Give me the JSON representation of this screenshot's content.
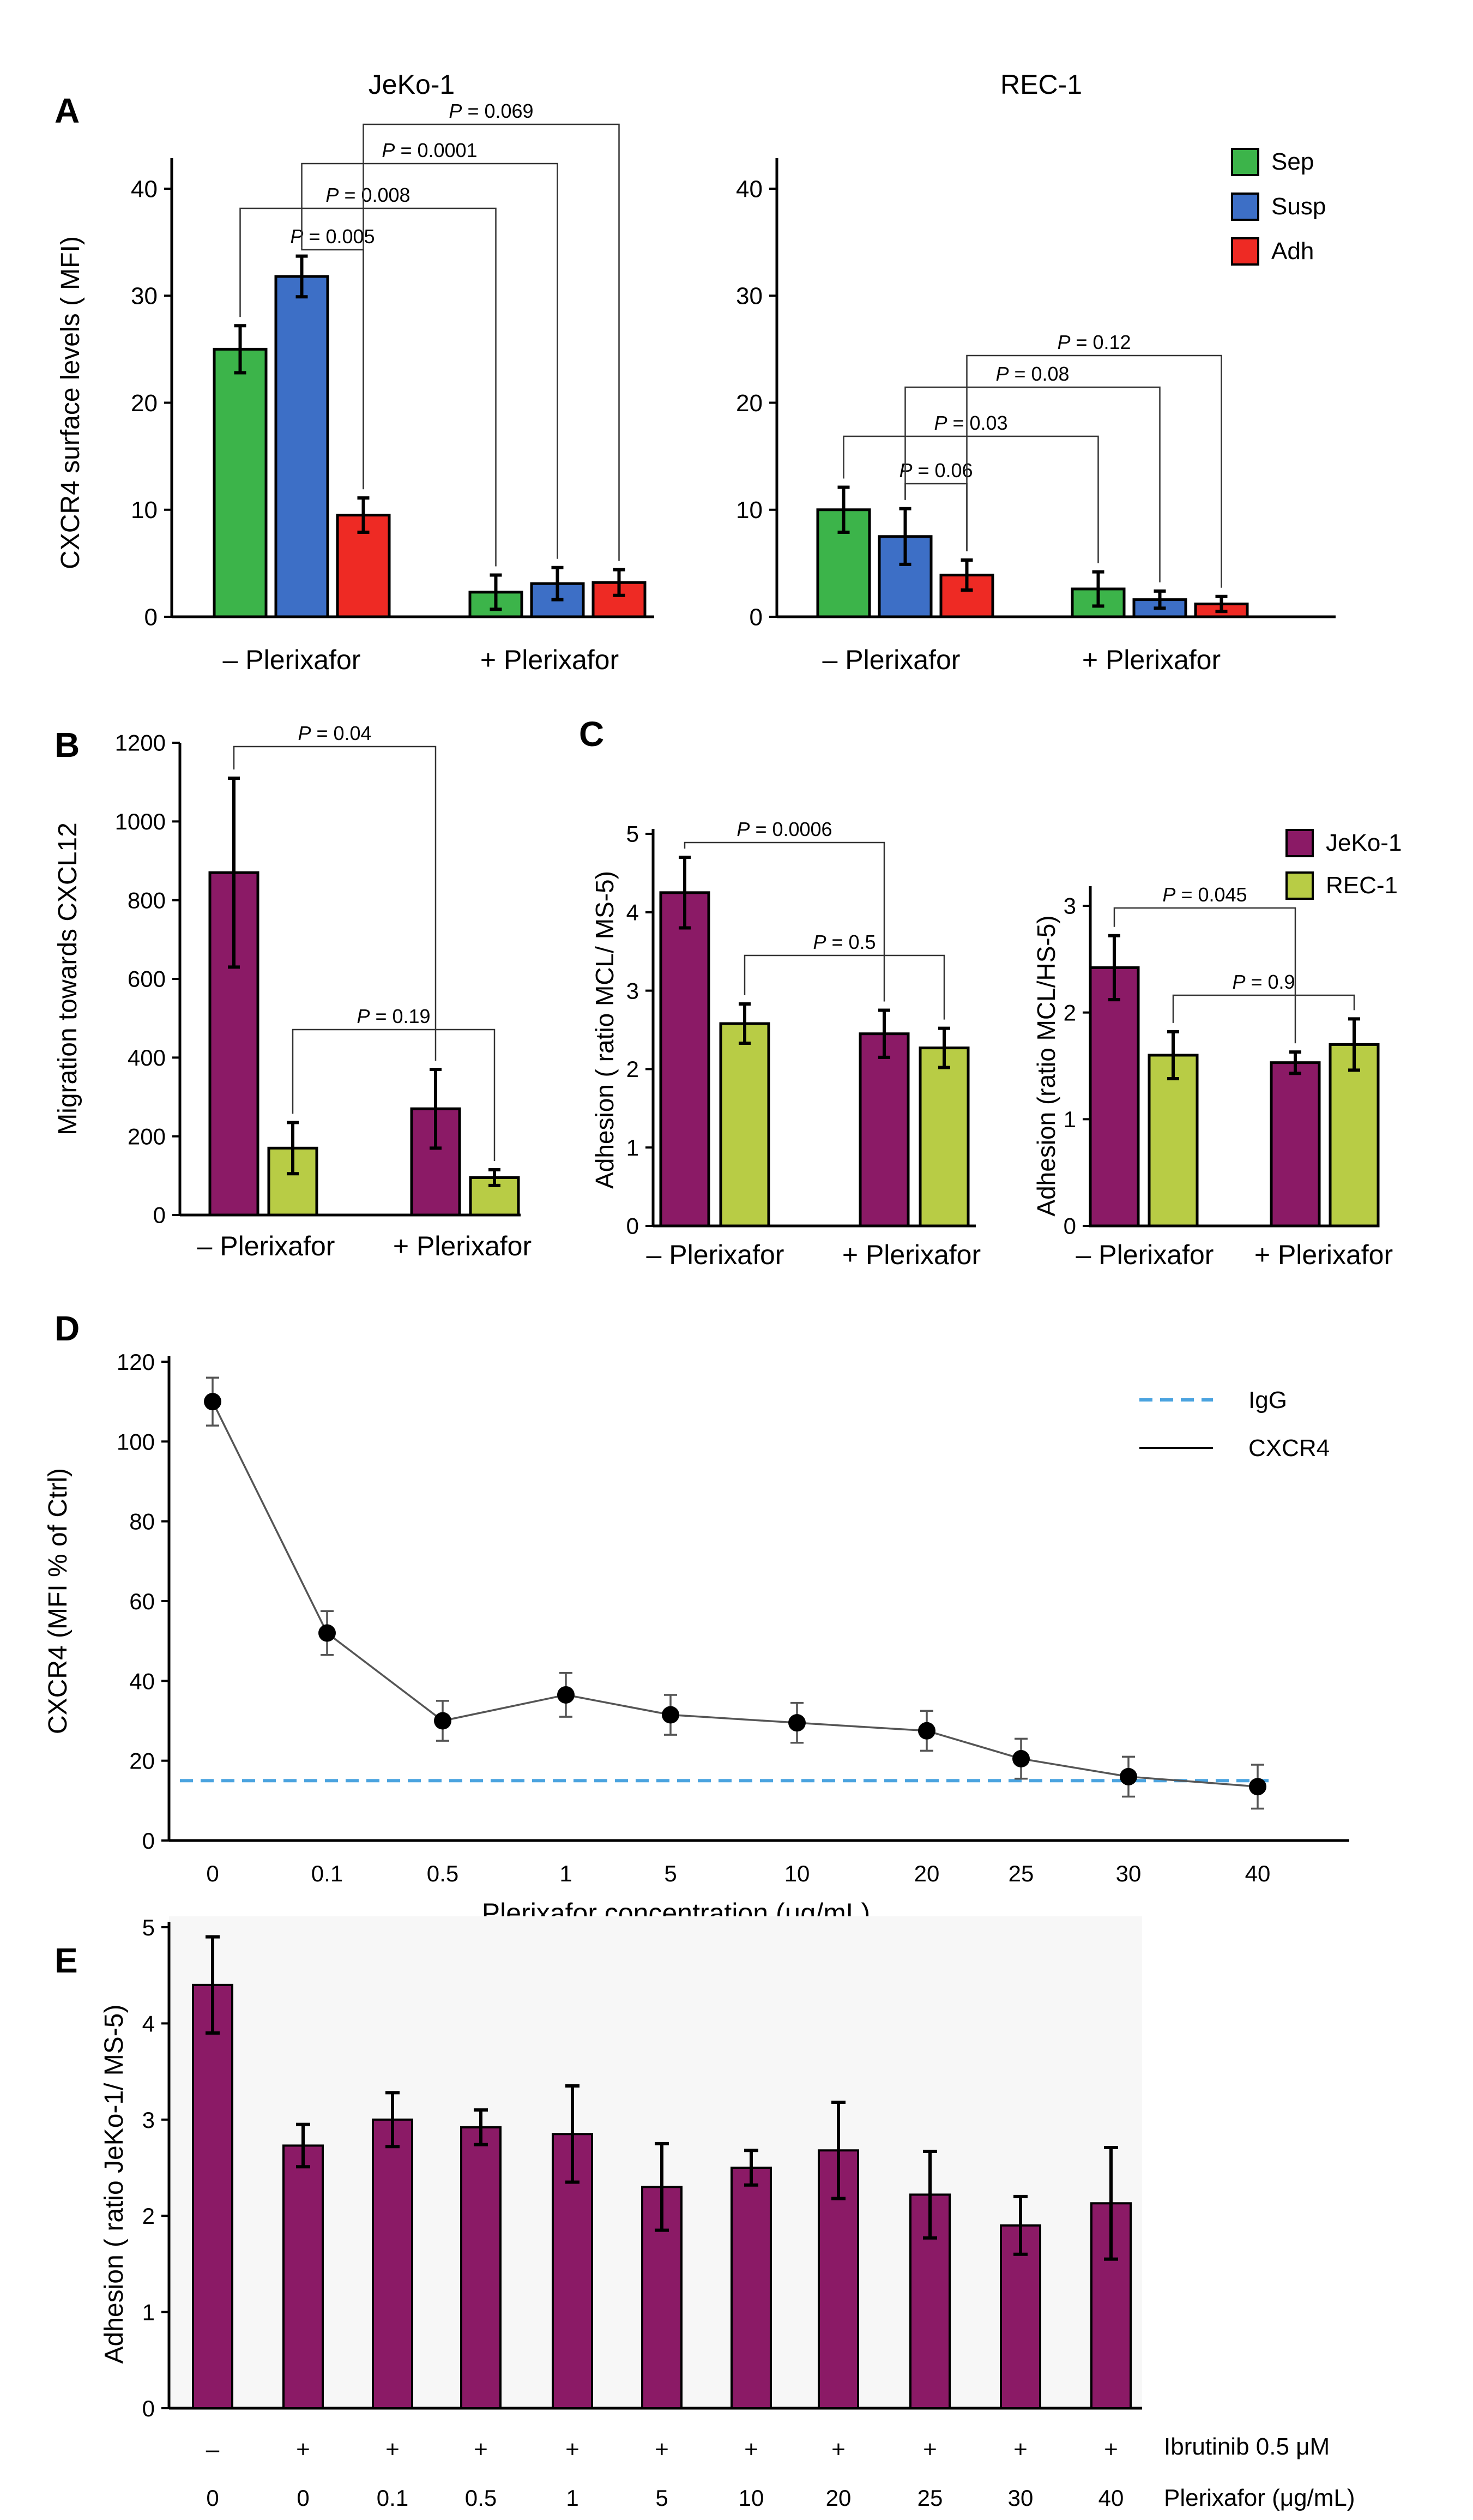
{
  "chart_data": [
    {
      "panel": "A",
      "type": "bar",
      "title": "JeKo-1",
      "ylabel": "CXCR4 surface levels ( MFI)",
      "ylim": [
        0,
        40
      ],
      "yticks": [
        0,
        10,
        20,
        30,
        40
      ],
      "groups": [
        "– Plerixafor",
        "+ Plerixafor"
      ],
      "series": [
        {
          "name": "Sep",
          "color": "#3cb44a",
          "values": [
            25,
            2.3
          ],
          "errors": [
            2.2,
            1.6
          ]
        },
        {
          "name": "Susp",
          "color": "#3d6fc6",
          "values": [
            31.8,
            3.1
          ],
          "errors": [
            1.9,
            1.5
          ]
        },
        {
          "name": "Adh",
          "color": "#ee2a24",
          "values": [
            9.5,
            3.2
          ],
          "errors": [
            1.6,
            1.2
          ]
        }
      ],
      "brackets": [
        {
          "text": "P = 0.005",
          "from": [
            0,
            1
          ],
          "to": [
            0,
            2
          ]
        },
        {
          "text": "P = 0.008",
          "from": [
            0,
            0
          ],
          "to": [
            1,
            0
          ]
        },
        {
          "text": "P = 0.0001",
          "from": [
            0,
            1
          ],
          "to": [
            1,
            1
          ]
        },
        {
          "text": "P = 0.069",
          "from": [
            0,
            2
          ],
          "to": [
            1,
            2
          ]
        }
      ]
    },
    {
      "panel": "",
      "type": "bar",
      "title": "REC-1",
      "ylabel": "",
      "ylim": [
        0,
        40
      ],
      "yticks": [
        0,
        10,
        20,
        30,
        40
      ],
      "groups": [
        "– Plerixafor",
        "+ Plerixafor"
      ],
      "series": [
        {
          "name": "Sep",
          "color": "#3cb44a",
          "values": [
            10,
            2.6
          ],
          "errors": [
            2.1,
            1.6
          ]
        },
        {
          "name": "Susp",
          "color": "#3d6fc6",
          "values": [
            7.5,
            1.6
          ],
          "errors": [
            2.6,
            0.8
          ]
        },
        {
          "name": "Adh",
          "color": "#ee2a24",
          "values": [
            3.9,
            1.2
          ],
          "errors": [
            1.4,
            0.7
          ]
        }
      ],
      "brackets": [
        {
          "text": "P = 0.06",
          "from": [
            0,
            1
          ],
          "to": [
            0,
            2
          ]
        },
        {
          "text": "P = 0.03",
          "from": [
            0,
            0
          ],
          "to": [
            1,
            0
          ]
        },
        {
          "text": "P = 0.08",
          "from": [
            0,
            1
          ],
          "to": [
            1,
            1
          ]
        },
        {
          "text": "P = 0.12",
          "from": [
            0,
            2
          ],
          "to": [
            1,
            2
          ]
        }
      ],
      "legend": [
        "Sep",
        "Susp",
        "Adh"
      ]
    },
    {
      "panel": "B",
      "type": "bar",
      "title": "",
      "ylabel": "Migration towards CXCL12",
      "ylim": [
        0,
        1200
      ],
      "yticks": [
        0,
        200,
        400,
        600,
        800,
        1000,
        1200
      ],
      "groups": [
        "– Plerixafor",
        "+ Plerixafor"
      ],
      "series": [
        {
          "name": "JeKo-1",
          "color": "#8b1a66",
          "values": [
            870,
            270
          ],
          "errors": [
            240,
            100
          ]
        },
        {
          "name": "REC-1",
          "color": "#b8cc45",
          "values": [
            170,
            95
          ],
          "errors": [
            65,
            20
          ]
        }
      ],
      "brackets": [
        {
          "text": "P = 0.04",
          "from": [
            0,
            0
          ],
          "to": [
            1,
            0
          ]
        },
        {
          "text": "P = 0.19",
          "from": [
            0,
            1
          ],
          "to": [
            1,
            1
          ]
        }
      ]
    },
    {
      "panel": "C",
      "type": "bar",
      "title": "",
      "ylabel": "Adhesion ( ratio MCL/ MS-5)",
      "ylim": [
        0,
        5
      ],
      "yticks": [
        0,
        1,
        2,
        3,
        4,
        5
      ],
      "groups": [
        "– Plerixafor",
        "+ Plerixafor"
      ],
      "series": [
        {
          "name": "JeKo-1",
          "color": "#8b1a66",
          "values": [
            4.25,
            2.45
          ],
          "errors": [
            0.45,
            0.3
          ]
        },
        {
          "name": "REC-1",
          "color": "#b8cc45",
          "values": [
            2.58,
            2.27
          ],
          "errors": [
            0.25,
            0.25
          ]
        }
      ],
      "brackets": [
        {
          "text": "P = 0.0006",
          "from": [
            0,
            0
          ],
          "to": [
            1,
            0
          ]
        },
        {
          "text": "P = 0.5",
          "from": [
            0,
            1
          ],
          "to": [
            1,
            1
          ]
        }
      ]
    },
    {
      "panel": "",
      "type": "bar",
      "title": "",
      "ylabel": "Adhesion (ratio MCL/HS-5)",
      "ylim": [
        0,
        3
      ],
      "yticks": [
        0,
        1,
        2,
        3
      ],
      "groups": [
        "– Plerixafor",
        "+ Plerixafor"
      ],
      "series": [
        {
          "name": "JeKo-1",
          "color": "#8b1a66",
          "values": [
            2.42,
            1.53
          ],
          "errors": [
            0.3,
            0.1
          ]
        },
        {
          "name": "REC-1",
          "color": "#b8cc45",
          "values": [
            1.6,
            1.7
          ],
          "errors": [
            0.22,
            0.24
          ]
        }
      ],
      "brackets": [
        {
          "text": "P = 0.045",
          "from": [
            0,
            0
          ],
          "to": [
            1,
            0
          ]
        },
        {
          "text": "P = 0.9",
          "from": [
            0,
            1
          ],
          "to": [
            1,
            1
          ]
        }
      ],
      "legend": [
        "JeKo-1",
        "REC-1"
      ]
    },
    {
      "panel": "D",
      "type": "line",
      "title": "",
      "xlabel": "Plerixafor concentration (μg/mL)",
      "ylabel": "CXCR4 (MFI % of Ctrl)",
      "ylim": [
        0,
        120
      ],
      "yticks": [
        0,
        20,
        40,
        60,
        80,
        100,
        120
      ],
      "categories": [
        "0",
        "0.1",
        "0.5",
        "1",
        "5",
        "10",
        "20",
        "25",
        "30",
        "40"
      ],
      "series": [
        {
          "name": "CXCR4",
          "values": [
            110,
            52,
            30,
            36.5,
            31.5,
            29.5,
            27.5,
            20.5,
            16,
            13.5
          ],
          "errors": [
            6,
            5.5,
            5,
            5.5,
            5,
            5,
            5,
            5,
            5,
            5.5
          ]
        },
        {
          "name": "IgG",
          "constant": 15,
          "style": "dashed",
          "color": "#4aa3df"
        }
      ],
      "legend": [
        "IgG",
        "CXCR4"
      ]
    },
    {
      "panel": "E",
      "type": "bar",
      "title": "",
      "ylabel": "Adhesion ( ratio JeKo-1/ MS-5)",
      "ylim": [
        0,
        5
      ],
      "yticks": [
        0,
        1,
        2,
        3,
        4,
        5
      ],
      "ibrutinib_row": [
        "–",
        "+",
        "+",
        "+",
        "+",
        "+",
        "+",
        "+",
        "+",
        "+",
        "+"
      ],
      "plerixafor_row": [
        "0",
        "0",
        "0.1",
        "0.5",
        "1",
        "5",
        "10",
        "20",
        "25",
        "30",
        "40"
      ],
      "row_labels": [
        "Ibrutinib 0.5 μM",
        "Plerixafor (μg/mL)"
      ],
      "series": [
        {
          "name": "JeKo-1",
          "color": "#8b1a66",
          "values": [
            4.4,
            2.73,
            3.0,
            2.92,
            2.85,
            2.3,
            2.5,
            2.68,
            2.22,
            1.9,
            2.13
          ],
          "errors": [
            0.5,
            0.22,
            0.28,
            0.18,
            0.5,
            0.45,
            0.18,
            0.5,
            0.45,
            0.3,
            0.58
          ]
        }
      ]
    }
  ]
}
